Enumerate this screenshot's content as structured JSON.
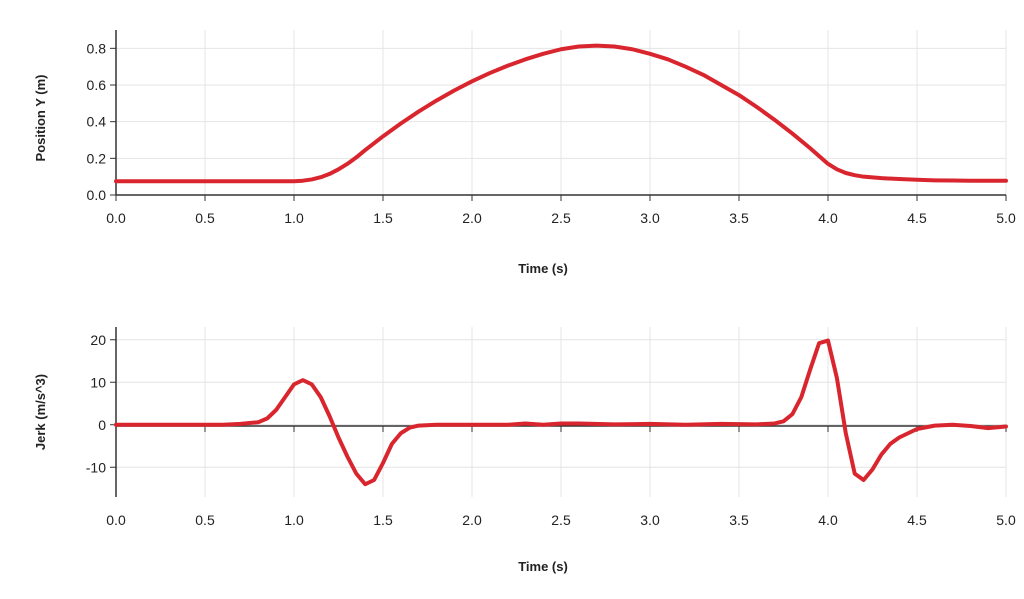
{
  "chart_data": [
    {
      "type": "line",
      "title": "",
      "xlabel": "Time (s)",
      "ylabel": "Position Y (m)",
      "xlim": [
        0,
        5
      ],
      "ylim": [
        0,
        0.9
      ],
      "grid": true,
      "xticks": [
        "0.0",
        "0.5",
        "1.0",
        "1.5",
        "2.0",
        "2.5",
        "3.0",
        "3.5",
        "4.0",
        "4.5",
        "5.0"
      ],
      "yticks": [
        "0.0",
        "0.2",
        "0.4",
        "0.6",
        "0.8"
      ],
      "line_color": "#d9262e",
      "series": [
        {
          "x": [
            0,
            0.25,
            0.5,
            0.75,
            1.0,
            1.05,
            1.1,
            1.15,
            1.2,
            1.25,
            1.3,
            1.35,
            1.4,
            1.5,
            1.6,
            1.7,
            1.8,
            1.9,
            2.0,
            2.1,
            2.2,
            2.3,
            2.4,
            2.5,
            2.6,
            2.7,
            2.8,
            2.9,
            3.0,
            3.1,
            3.2,
            3.3,
            3.4,
            3.5,
            3.6,
            3.7,
            3.8,
            3.9,
            4.0,
            4.05,
            4.1,
            4.15,
            4.2,
            4.3,
            4.4,
            4.5,
            4.6,
            4.7,
            4.8,
            4.9,
            5.0
          ],
          "y": [
            0.075,
            0.075,
            0.075,
            0.075,
            0.075,
            0.078,
            0.085,
            0.097,
            0.115,
            0.14,
            0.17,
            0.205,
            0.245,
            0.32,
            0.39,
            0.455,
            0.515,
            0.57,
            0.62,
            0.665,
            0.705,
            0.74,
            0.77,
            0.795,
            0.81,
            0.815,
            0.81,
            0.795,
            0.77,
            0.74,
            0.7,
            0.655,
            0.6,
            0.545,
            0.48,
            0.41,
            0.335,
            0.255,
            0.17,
            0.14,
            0.12,
            0.108,
            0.1,
            0.092,
            0.087,
            0.083,
            0.08,
            0.079,
            0.078,
            0.078,
            0.078
          ]
        }
      ]
    },
    {
      "type": "line",
      "title": "",
      "xlabel": "Time (s)",
      "ylabel": "Jerk (m/s^3)",
      "xlim": [
        0,
        5
      ],
      "ylim": [
        -17,
        23
      ],
      "grid": true,
      "xticks": [
        "0.0",
        "0.5",
        "1.0",
        "1.5",
        "2.0",
        "2.5",
        "3.0",
        "3.5",
        "4.0",
        "4.5",
        "5.0"
      ],
      "yticks": [
        "-10",
        "0",
        "10",
        "20"
      ],
      "line_color": "#d9262e",
      "series": [
        {
          "x": [
            0,
            0.25,
            0.5,
            0.6,
            0.7,
            0.75,
            0.8,
            0.85,
            0.9,
            0.95,
            1.0,
            1.05,
            1.1,
            1.15,
            1.2,
            1.25,
            1.3,
            1.35,
            1.4,
            1.45,
            1.5,
            1.55,
            1.6,
            1.65,
            1.7,
            1.8,
            2.0,
            2.2,
            2.3,
            2.4,
            2.5,
            2.6,
            2.8,
            3.0,
            3.2,
            3.4,
            3.6,
            3.7,
            3.75,
            3.8,
            3.85,
            3.9,
            3.95,
            4.0,
            4.05,
            4.1,
            4.15,
            4.2,
            4.25,
            4.3,
            4.35,
            4.4,
            4.5,
            4.6,
            4.7,
            4.8,
            4.9,
            5.0
          ],
          "y": [
            0,
            0,
            0,
            0,
            0.2,
            0.4,
            0.6,
            1.5,
            3.5,
            6.5,
            9.5,
            10.5,
            9.5,
            6.5,
            2,
            -3,
            -7.5,
            -11.5,
            -14,
            -13,
            -9,
            -4.5,
            -2,
            -0.7,
            -0.2,
            0,
            0,
            0,
            0.3,
            0,
            0.3,
            0.3,
            0.1,
            0.2,
            0,
            0.2,
            0.1,
            0.3,
            0.8,
            2.5,
            6.5,
            13,
            19.2,
            19.8,
            11,
            -2,
            -11.5,
            -13,
            -10.5,
            -7,
            -4.5,
            -3,
            -1,
            -0.2,
            0,
            -0.3,
            -0.8,
            -0.4
          ]
        }
      ]
    }
  ]
}
